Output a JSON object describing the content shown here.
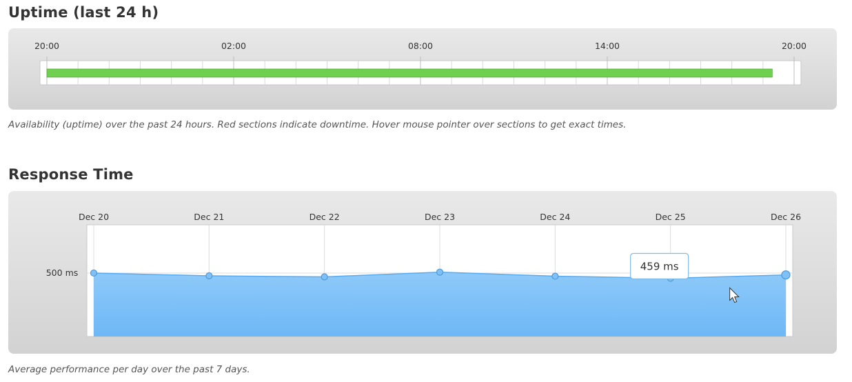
{
  "uptime": {
    "title": "Uptime (last 24 h)",
    "caption": "Availability (uptime) over the past 24 hours. Red sections indicate downtime. Hover mouse pointer over sections to get exact times.",
    "colors": {
      "up": "#6fcf4f",
      "down": "#d9534f"
    }
  },
  "response": {
    "title": "Response Time",
    "caption": "Average performance per day over the past 7 days.",
    "tooltip": "459 ms",
    "colors": {
      "area_top": "#8ec9f9",
      "area_bottom": "#6db8f6",
      "line": "#5aaaf0",
      "point": "#7fc1f7"
    }
  },
  "chart_data": [
    {
      "type": "bar",
      "x_ticks": [
        "20:00",
        "02:00",
        "08:00",
        "14:00",
        "20:00"
      ],
      "xlim_hours": [
        0,
        24
      ],
      "segments": [
        {
          "status": "up",
          "start_hour": 0,
          "end_hour": 23.3
        }
      ],
      "grid": true
    },
    {
      "type": "area",
      "categories": [
        "Dec 20",
        "Dec 21",
        "Dec 22",
        "Dec 23",
        "Dec 24",
        "Dec 25",
        "Dec 26"
      ],
      "values": [
        500,
        478,
        470,
        507,
        475,
        459,
        485
      ],
      "y_ticks": [
        {
          "value": 500,
          "label": "500 ms"
        }
      ],
      "ylim": [
        0,
        880
      ],
      "highlighted_index": 5,
      "grid": true
    }
  ]
}
